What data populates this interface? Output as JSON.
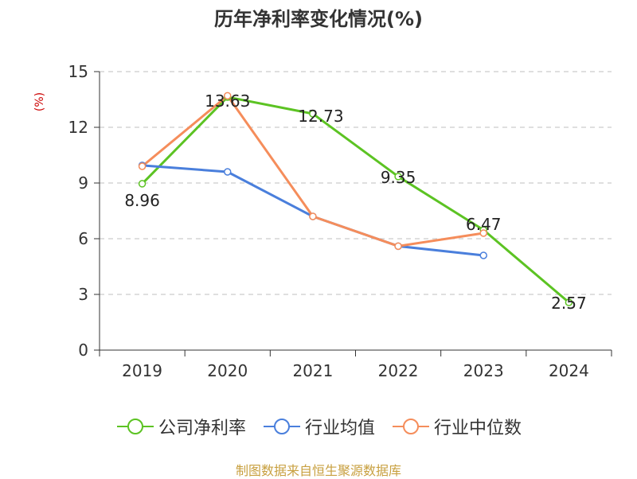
{
  "chart_data": {
    "type": "line",
    "title": "历年净利率变化情况(%)",
    "ylabel": "(%)",
    "categories": [
      "2019",
      "2020",
      "2021",
      "2022",
      "2023",
      "2024"
    ],
    "ylim": [
      0,
      15
    ],
    "yticks": [
      0,
      3,
      6,
      9,
      12,
      15
    ],
    "grid": true,
    "legend_position": "bottom",
    "series": [
      {
        "name": "公司净利率",
        "color": "#5cc323",
        "values": [
          8.96,
          13.63,
          12.73,
          9.35,
          6.47,
          2.57
        ],
        "labels": [
          "8.96",
          "13.63",
          "12.73",
          "9.35",
          "6.47",
          "2.57"
        ]
      },
      {
        "name": "行业均值",
        "color": "#4a7fdc",
        "values": [
          9.95,
          9.6,
          7.2,
          5.6,
          5.1,
          null
        ]
      },
      {
        "name": "行业中位数",
        "color": "#f58d5b",
        "values": [
          9.9,
          13.7,
          7.2,
          5.6,
          6.3,
          null
        ]
      }
    ]
  },
  "source": "制图数据来自恒生聚源数据库"
}
